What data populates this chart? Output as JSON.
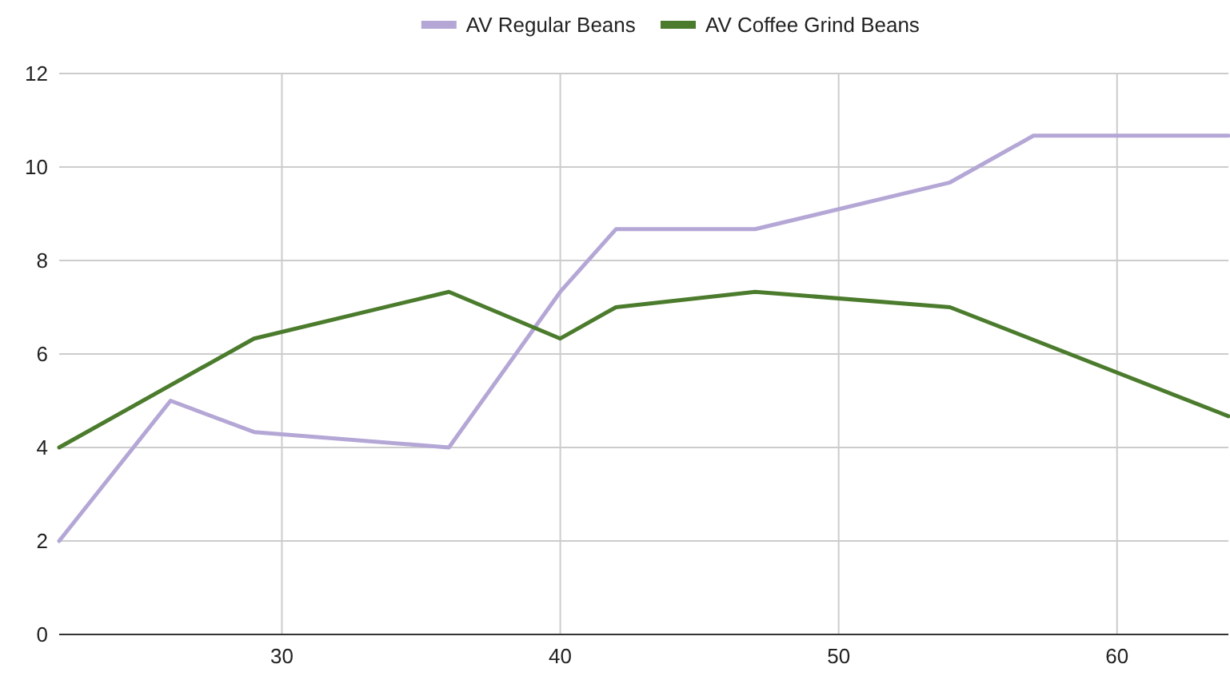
{
  "chart_data": {
    "type": "line",
    "xlim": [
      22,
      64
    ],
    "xticks": [
      30,
      40,
      50,
      60
    ],
    "ylim": [
      0,
      12
    ],
    "yticks": [
      0,
      2,
      4,
      6,
      8,
      10,
      12
    ],
    "grid": true,
    "legend": "top",
    "marker": "none",
    "line_style": "solid",
    "series": [
      {
        "name": "AV Regular Beans",
        "color": "#b4a7d6",
        "x": [
          22,
          26,
          29,
          36,
          40,
          42,
          47,
          54,
          57,
          64
        ],
        "values": [
          2,
          5,
          4.33,
          4,
          7.33,
          8.67,
          8.67,
          9.67,
          10.67,
          10.67
        ]
      },
      {
        "name": "AV Coffee Grind Beans",
        "color": "#4b7b2c",
        "x": [
          22,
          29,
          36,
          40,
          42,
          47,
          54,
          64
        ],
        "values": [
          4,
          6.33,
          7.33,
          6.33,
          7,
          7.33,
          7,
          4.67
        ]
      }
    ]
  }
}
